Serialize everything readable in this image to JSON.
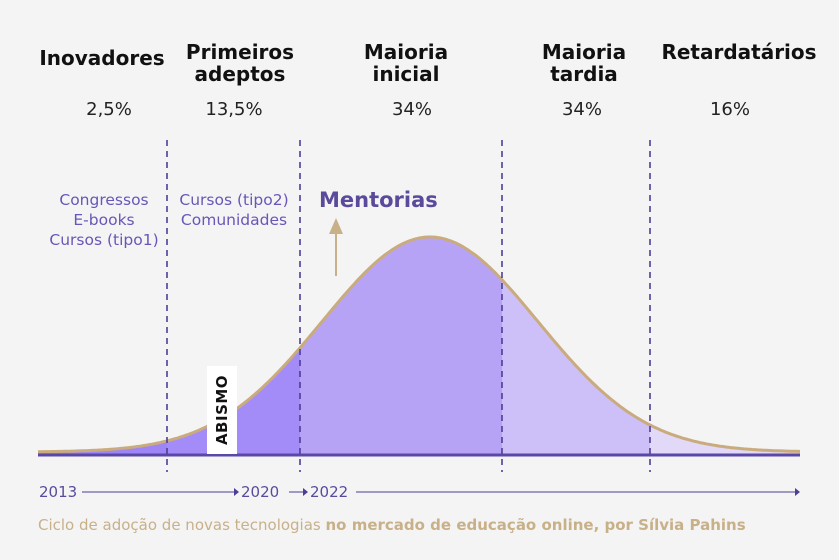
{
  "segments": [
    {
      "title": "Inovadores",
      "pct": "2,5%"
    },
    {
      "title": "Primeiros\nadeptos",
      "pct": "13,5%"
    },
    {
      "title": "Maioria\ninicial",
      "pct": "34%"
    },
    {
      "title": "Maioria\ntardia",
      "pct": "34%"
    },
    {
      "title": "Retardatários",
      "pct": "16%"
    }
  ],
  "phases": {
    "phase1": "Congressos\nE-books\nCursos (tipo1)",
    "phase2": "Cursos (tipo2)\nComunidades",
    "phase3": "Mentorias"
  },
  "abismo": "ABISMO",
  "timeline": {
    "y1": "2013",
    "y2": "2020",
    "y3": "2022"
  },
  "caption": {
    "normal": "Ciclo de adoção de novas tecnologias ",
    "bold": "no mercado de educação online, por Sílvia Pahins"
  },
  "colors": {
    "background": "#f4f4f4",
    "innovators": "#9d84f7",
    "early_adopters": "#a48cf8",
    "early_majority": "#b7a3f6",
    "late_majority": "#cdbff7",
    "laggards": "#e1d9f7",
    "curve": "#c9ab7d",
    "dashed": "#4e3d97",
    "baseline": "#5a48a8",
    "arrow": "#c8b089",
    "text_purple": "#6a55b8",
    "caption": "#c8b089"
  }
}
